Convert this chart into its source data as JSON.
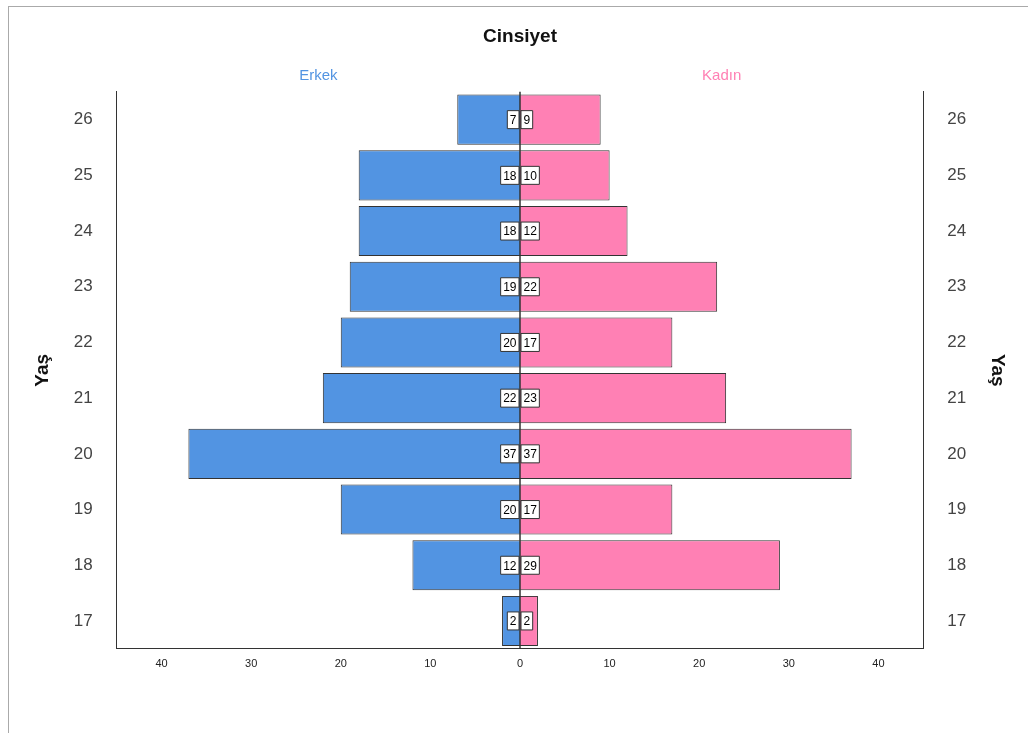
{
  "chart_data": {
    "type": "bar",
    "orientation": "horizontal",
    "title": "Cinsiyet",
    "ylabel": "Yaş",
    "categories": [
      "26",
      "25",
      "24",
      "23",
      "22",
      "21",
      "20",
      "19",
      "18",
      "17"
    ],
    "series": [
      {
        "name": "Erkek",
        "color": "#5294e2",
        "values": [
          7,
          18,
          18,
          19,
          20,
          22,
          37,
          20,
          12,
          2
        ],
        "base": [
          -7,
          -18,
          -18,
          -19,
          -20,
          -22,
          -37,
          -20,
          -12,
          -2
        ]
      },
      {
        "name": "Kadın",
        "color": "#ff80b4",
        "values": [
          9,
          10,
          12,
          22,
          17,
          23,
          37,
          17,
          29,
          2
        ]
      }
    ],
    "data_labels": true,
    "xlim": [
      -45,
      45
    ],
    "xticks": [
      {
        "value": -40,
        "label": "40"
      },
      {
        "value": -30,
        "label": "30"
      },
      {
        "value": -20,
        "label": "20"
      },
      {
        "value": -10,
        "label": "10"
      },
      0,
      10,
      20,
      30,
      40
    ],
    "ref_lines": [
      {
        "axis": "x",
        "value": 0,
        "color": "#333333"
      }
    ],
    "grid": false,
    "legend": false
  }
}
